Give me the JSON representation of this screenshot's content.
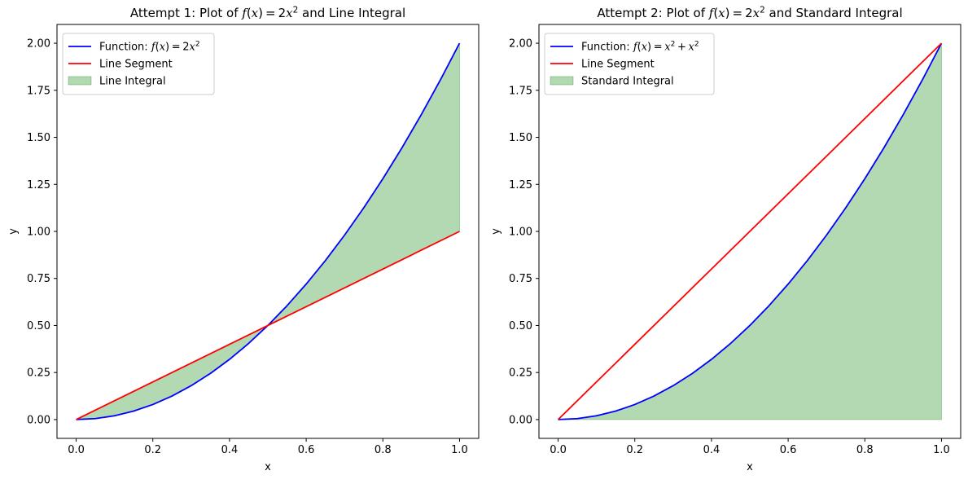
{
  "chart_data": [
    {
      "type": "line",
      "title": "Attempt 1: Plot of f(x) = 2x² and Line Integral",
      "title_parts": {
        "prefix": "Attempt 1: Plot of ",
        "math": "f(x) = 2x²",
        "suffix": " and Line Integral"
      },
      "xlabel": "x",
      "ylabel": "y",
      "xlim": [
        -0.05,
        1.05
      ],
      "ylim": [
        -0.1,
        2.1
      ],
      "xticks": [
        0.0,
        0.2,
        0.4,
        0.6,
        0.8,
        1.0
      ],
      "xtick_labels": [
        "0.0",
        "0.2",
        "0.4",
        "0.6",
        "0.8",
        "1.0"
      ],
      "yticks": [
        0.0,
        0.25,
        0.5,
        0.75,
        1.0,
        1.25,
        1.5,
        1.75,
        2.0
      ],
      "ytick_labels": [
        "0.00",
        "0.25",
        "0.50",
        "0.75",
        "1.00",
        "1.25",
        "1.50",
        "1.75",
        "2.00"
      ],
      "grid": false,
      "legend_position": "top-left",
      "series": [
        {
          "name": "Function: f(x) = 2x²",
          "label_prefix": "Function: ",
          "label_math": "f(x) = 2x²",
          "kind": "line",
          "color": "#0000ff",
          "x": [
            0.0,
            0.05,
            0.1,
            0.15,
            0.2,
            0.25,
            0.3,
            0.35,
            0.4,
            0.45,
            0.5,
            0.55,
            0.6,
            0.65,
            0.7,
            0.75,
            0.8,
            0.85,
            0.9,
            0.95,
            1.0
          ],
          "y": [
            0.0,
            0.005,
            0.02,
            0.045,
            0.08,
            0.125,
            0.18,
            0.245,
            0.32,
            0.405,
            0.5,
            0.605,
            0.72,
            0.845,
            0.98,
            1.125,
            1.28,
            1.445,
            1.62,
            1.805,
            2.0
          ]
        },
        {
          "name": "Line Segment",
          "kind": "line",
          "color": "#ff0000",
          "x": [
            0.0,
            1.0
          ],
          "y": [
            0.0,
            1.0
          ]
        },
        {
          "name": "Line Integral",
          "kind": "area_between",
          "color": "#008000",
          "opacity": 0.3,
          "x": [
            0.0,
            0.05,
            0.1,
            0.15,
            0.2,
            0.25,
            0.3,
            0.35,
            0.4,
            0.45,
            0.5,
            0.55,
            0.6,
            0.65,
            0.7,
            0.75,
            0.8,
            0.85,
            0.9,
            0.95,
            1.0
          ],
          "y_upper": [
            0.0,
            0.05,
            0.1,
            0.15,
            0.2,
            0.25,
            0.3,
            0.35,
            0.4,
            0.45,
            0.5,
            0.605,
            0.72,
            0.845,
            0.98,
            1.125,
            1.28,
            1.445,
            1.62,
            1.805,
            2.0
          ],
          "y_lower": [
            0.0,
            0.005,
            0.02,
            0.045,
            0.08,
            0.125,
            0.18,
            0.245,
            0.32,
            0.405,
            0.5,
            0.55,
            0.6,
            0.65,
            0.7,
            0.75,
            0.8,
            0.85,
            0.9,
            0.95,
            1.0
          ]
        }
      ]
    },
    {
      "type": "line",
      "title": "Attempt 2: Plot of f(x) = 2x² and Standard Integral",
      "title_parts": {
        "prefix": "Attempt 2: Plot of ",
        "math": "f(x) = 2x²",
        "suffix": " and Standard Integral"
      },
      "xlabel": "x",
      "ylabel": "y",
      "xlim": [
        -0.05,
        1.05
      ],
      "ylim": [
        -0.1,
        2.1
      ],
      "xticks": [
        0.0,
        0.2,
        0.4,
        0.6,
        0.8,
        1.0
      ],
      "xtick_labels": [
        "0.0",
        "0.2",
        "0.4",
        "0.6",
        "0.8",
        "1.0"
      ],
      "yticks": [
        0.0,
        0.25,
        0.5,
        0.75,
        1.0,
        1.25,
        1.5,
        1.75,
        2.0
      ],
      "ytick_labels": [
        "0.00",
        "0.25",
        "0.50",
        "0.75",
        "1.00",
        "1.25",
        "1.50",
        "1.75",
        "2.00"
      ],
      "grid": false,
      "legend_position": "top-left",
      "series": [
        {
          "name": "Function: f(x) = x² + x²",
          "label_prefix": "Function: ",
          "label_math": "f(x) = x² + x²",
          "kind": "line",
          "color": "#0000ff",
          "x": [
            0.0,
            0.05,
            0.1,
            0.15,
            0.2,
            0.25,
            0.3,
            0.35,
            0.4,
            0.45,
            0.5,
            0.55,
            0.6,
            0.65,
            0.7,
            0.75,
            0.8,
            0.85,
            0.9,
            0.95,
            1.0
          ],
          "y": [
            0.0,
            0.005,
            0.02,
            0.045,
            0.08,
            0.125,
            0.18,
            0.245,
            0.32,
            0.405,
            0.5,
            0.605,
            0.72,
            0.845,
            0.98,
            1.125,
            1.28,
            1.445,
            1.62,
            1.805,
            2.0
          ]
        },
        {
          "name": "Line Segment",
          "kind": "line",
          "color": "#ff0000",
          "x": [
            0.0,
            1.0
          ],
          "y": [
            0.0,
            2.0
          ]
        },
        {
          "name": "Standard Integral",
          "kind": "area_between",
          "color": "#008000",
          "opacity": 0.3,
          "x": [
            0.0,
            0.05,
            0.1,
            0.15,
            0.2,
            0.25,
            0.3,
            0.35,
            0.4,
            0.45,
            0.5,
            0.55,
            0.6,
            0.65,
            0.7,
            0.75,
            0.8,
            0.85,
            0.9,
            0.95,
            1.0
          ],
          "y_upper": [
            0.0,
            0.005,
            0.02,
            0.045,
            0.08,
            0.125,
            0.18,
            0.245,
            0.32,
            0.405,
            0.5,
            0.605,
            0.72,
            0.845,
            0.98,
            1.125,
            1.28,
            1.445,
            1.62,
            1.805,
            2.0
          ],
          "y_lower": [
            0.0,
            0.0,
            0.0,
            0.0,
            0.0,
            0.0,
            0.0,
            0.0,
            0.0,
            0.0,
            0.0,
            0.0,
            0.0,
            0.0,
            0.0,
            0.0,
            0.0,
            0.0,
            0.0,
            0.0,
            0.0
          ]
        }
      ]
    }
  ]
}
